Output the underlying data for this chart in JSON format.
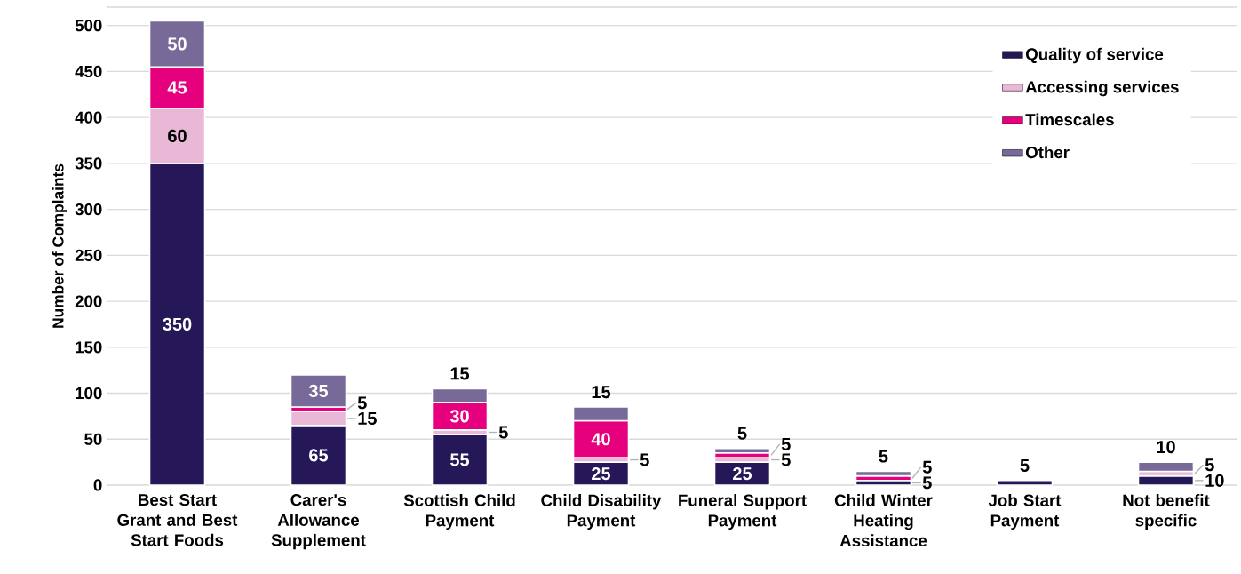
{
  "chart_data": {
    "type": "bar",
    "stacked": true,
    "ylabel": "Number of Complaints",
    "categories": [
      "Best Start Grant and Best Start Foods",
      "Carer's Allowance Supplement",
      "Scottish Child Payment",
      "Child Disability Payment",
      "Funeral Support Payment",
      "Child Winter Heating Assistance",
      "Job Start Payment",
      "Not benefit specific"
    ],
    "series": [
      {
        "name": "Quality of service",
        "color": "#261858",
        "values": [
          350,
          65,
          55,
          25,
          25,
          5,
          5,
          10
        ]
      },
      {
        "name": "Accessing services",
        "color": "#e8b8d6",
        "values": [
          60,
          15,
          5,
          5,
          5,
          null,
          null,
          5
        ]
      },
      {
        "name": "Timescales",
        "color": "#e6007e",
        "values": [
          45,
          5,
          30,
          40,
          5,
          5,
          null,
          null
        ]
      },
      {
        "name": "Other",
        "color": "#786a98",
        "values": [
          50,
          35,
          15,
          15,
          5,
          5,
          null,
          10
        ]
      }
    ],
    "ylim": [
      0,
      520
    ],
    "yticks": [
      0,
      50,
      100,
      150,
      200,
      250,
      300,
      350,
      400,
      450,
      500
    ],
    "grid": "y",
    "legend": "top right",
    "data_labels": true
  }
}
